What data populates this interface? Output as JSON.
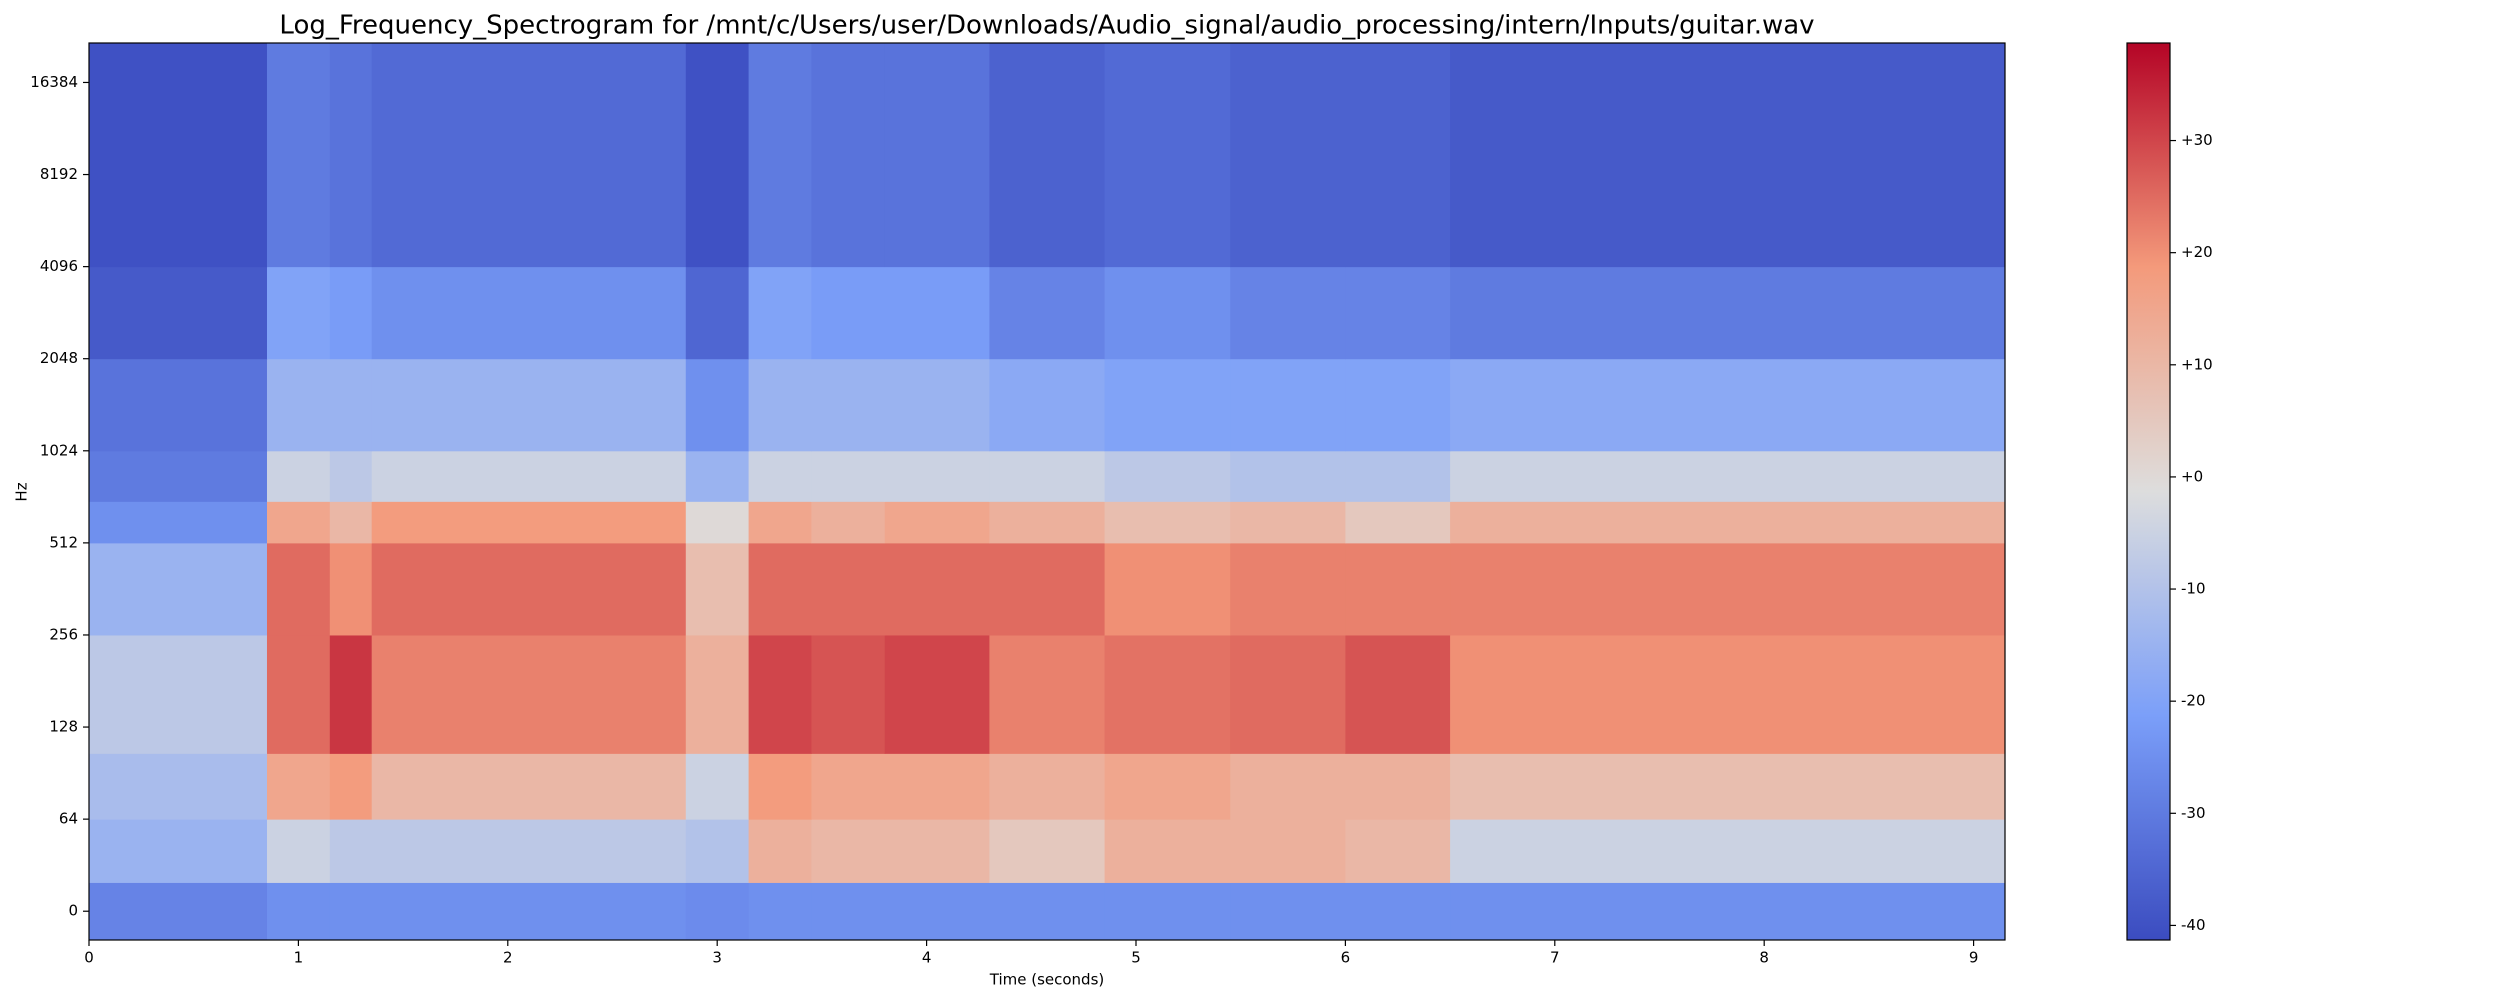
{
  "chart_data": {
    "type": "heatmap",
    "title": "Log_Frequency_Spectrogram for /mnt/c/Users/user/Downloads/Audio_signal/audio_processing/intern/Inputs/guitar.wav",
    "x_label": "Time (seconds)",
    "y_label": "Hz",
    "yscale": "symlog",
    "colormap": "coolwarm",
    "x_edges": [
      0,
      0.85,
      1.15,
      1.35,
      2.85,
      3.15,
      3.45,
      3.8,
      4.3,
      4.85,
      5.45,
      6.0,
      6.5,
      9.15
    ],
    "y_edges": [
      -20,
      20,
      64,
      105,
      256,
      512,
      700,
      1024,
      2048,
      4096,
      22050
    ],
    "z": [
      [
        -28,
        -25,
        -25,
        -25,
        -26,
        -25,
        -25,
        -25,
        -25,
        -25,
        -25,
        -25,
        -25
      ],
      [
        -15,
        -5,
        -8,
        -8,
        -10,
        12,
        10,
        10,
        5,
        12,
        12,
        10,
        -5
      ],
      [
        -12,
        15,
        18,
        10,
        -5,
        18,
        15,
        15,
        12,
        15,
        12,
        12,
        8
      ],
      [
        -8,
        25,
        32,
        22,
        12,
        30,
        28,
        30,
        22,
        24,
        25,
        28,
        20
      ],
      [
        -15,
        25,
        20,
        25,
        8,
        25,
        25,
        25,
        25,
        20,
        22,
        22,
        22
      ],
      [
        -25,
        15,
        10,
        18,
        0,
        15,
        12,
        15,
        12,
        8,
        10,
        5,
        12
      ],
      [
        -30,
        -5,
        -8,
        -5,
        -15,
        -5,
        -5,
        -5,
        -5,
        -8,
        -10,
        -10,
        -5
      ],
      [
        -32,
        -15,
        -15,
        -15,
        -25,
        -15,
        -15,
        -15,
        -18,
        -20,
        -20,
        -20,
        -18
      ],
      [
        -38,
        -20,
        -22,
        -25,
        -35,
        -20,
        -22,
        -22,
        -28,
        -25,
        -28,
        -28,
        -30
      ],
      [
        -40,
        -30,
        -32,
        -34,
        -40,
        -30,
        -32,
        -32,
        -36,
        -34,
        -36,
        -36,
        -38
      ]
    ],
    "xlim": [
      0,
      9.15
    ],
    "xticks": [
      0,
      1,
      2,
      3,
      4,
      5,
      6,
      7,
      8,
      9
    ],
    "ylim": [
      -20,
      22050
    ],
    "yticks": [
      0,
      64,
      128,
      256,
      512,
      1024,
      2048,
      4096,
      8192,
      16384
    ],
    "zlim": [
      -41.3,
      38.7
    ],
    "zticks": [
      -40,
      -30,
      -20,
      -10,
      {
        "value": 0,
        "label": "+0"
      },
      {
        "value": 10,
        "label": "+10"
      },
      {
        "value": 20,
        "label": "+20"
      },
      {
        "value": 30,
        "label": "+30"
      }
    ]
  }
}
